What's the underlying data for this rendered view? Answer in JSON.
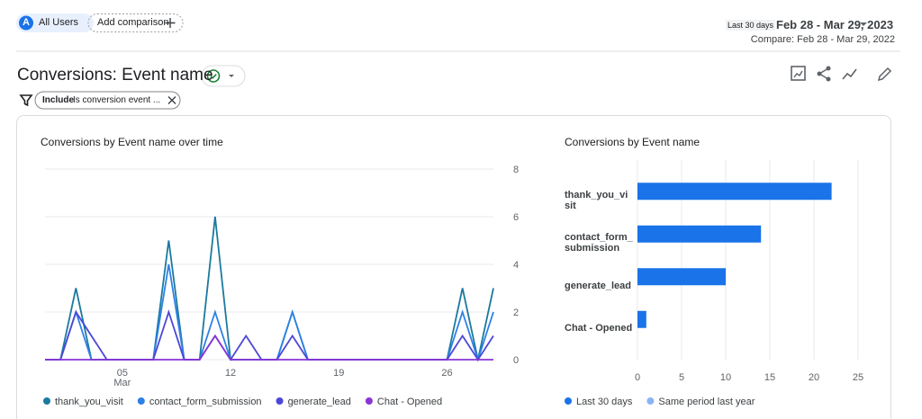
{
  "header": {
    "segment_initial": "A",
    "segment": "All Users",
    "add_comparison": "Add comparison",
    "date_range_label": "Last 30 days",
    "date_range": "Feb 28 - Mar 29, 2023",
    "compare": "Compare: Feb 28 - Mar 29, 2022"
  },
  "report": {
    "title": "Conversions: Event name",
    "filter_include": "Include",
    "filter_text": "Is conversion event ..."
  },
  "chart_data": [
    {
      "type": "line",
      "title": "Conversions by Event name over time",
      "categories": [
        null,
        null,
        null,
        null,
        null,
        "05\nMar",
        null,
        null,
        null,
        null,
        null,
        null,
        "12",
        null,
        null,
        null,
        null,
        null,
        null,
        "19",
        null,
        null,
        null,
        null,
        null,
        null,
        "26",
        null,
        null,
        null
      ],
      "ylim": [
        0,
        8
      ],
      "yticks": [
        0,
        2,
        4,
        6,
        8
      ],
      "grid": true,
      "series": [
        {
          "name": "thank_you_visit",
          "color": "#1b7a9e",
          "values": [
            0,
            0,
            3,
            0,
            0,
            0,
            0,
            0,
            5,
            0,
            0,
            6,
            0,
            0,
            0,
            0,
            2,
            0,
            0,
            0,
            0,
            0,
            0,
            0,
            0,
            0,
            0,
            3,
            0,
            3
          ]
        },
        {
          "name": "contact_form_submission",
          "color": "#2f80e6",
          "values": [
            0,
            0,
            2,
            0,
            0,
            0,
            0,
            0,
            4,
            0,
            0,
            2,
            0,
            0,
            0,
            0,
            2,
            0,
            0,
            0,
            0,
            0,
            0,
            0,
            0,
            0,
            0,
            2,
            0,
            2
          ]
        },
        {
          "name": "generate_lead",
          "color": "#4c47d6",
          "values": [
            0,
            0,
            2,
            1,
            0,
            0,
            0,
            0,
            2,
            0,
            0,
            1,
            0,
            1,
            0,
            0,
            1,
            0,
            0,
            0,
            0,
            0,
            0,
            0,
            0,
            0,
            0,
            1,
            0,
            1
          ]
        },
        {
          "name": "Chat - Opened",
          "color": "#8a35d4",
          "values": [
            0,
            0,
            0,
            0,
            0,
            0,
            0,
            0,
            0,
            0,
            0,
            1,
            0,
            0,
            0,
            0,
            0,
            0,
            0,
            0,
            0,
            0,
            0,
            0,
            0,
            0,
            0,
            0,
            0,
            0
          ]
        }
      ]
    },
    {
      "type": "hbar",
      "title": "Conversions by Event name",
      "categories": [
        "thank_you_visit",
        "contact_form_submission",
        "generate_lead",
        "Chat - Opened"
      ],
      "values": [
        22,
        14,
        10,
        1
      ],
      "color": "#1a73e8",
      "xlim": [
        0,
        25
      ],
      "xticks": [
        0,
        5,
        10,
        15,
        20,
        25
      ],
      "grid": true,
      "legend": [
        {
          "name": "Last 30 days",
          "color": "#1a73e8"
        },
        {
          "name": "Same period last year",
          "color": "#8ab4f8"
        }
      ]
    }
  ]
}
